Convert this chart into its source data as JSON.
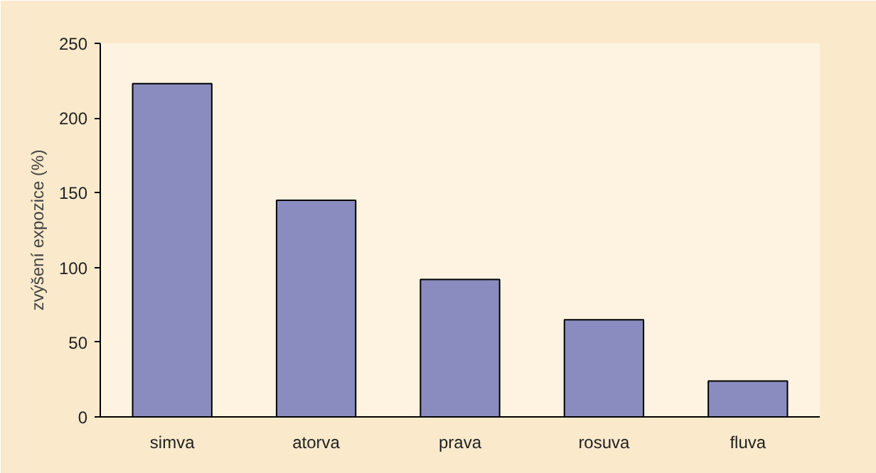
{
  "chart_data": {
    "type": "bar",
    "ylabel": "zvýšení expozice (%)",
    "categories": [
      "simva",
      "atorva",
      "prava",
      "rosuva",
      "fluva"
    ],
    "values": [
      223,
      145,
      92,
      65,
      24
    ],
    "color": "#8a8cc0",
    "ylim": [
      0,
      250
    ],
    "yticks": [
      0,
      50,
      100,
      150,
      200,
      250
    ],
    "grid": false
  }
}
